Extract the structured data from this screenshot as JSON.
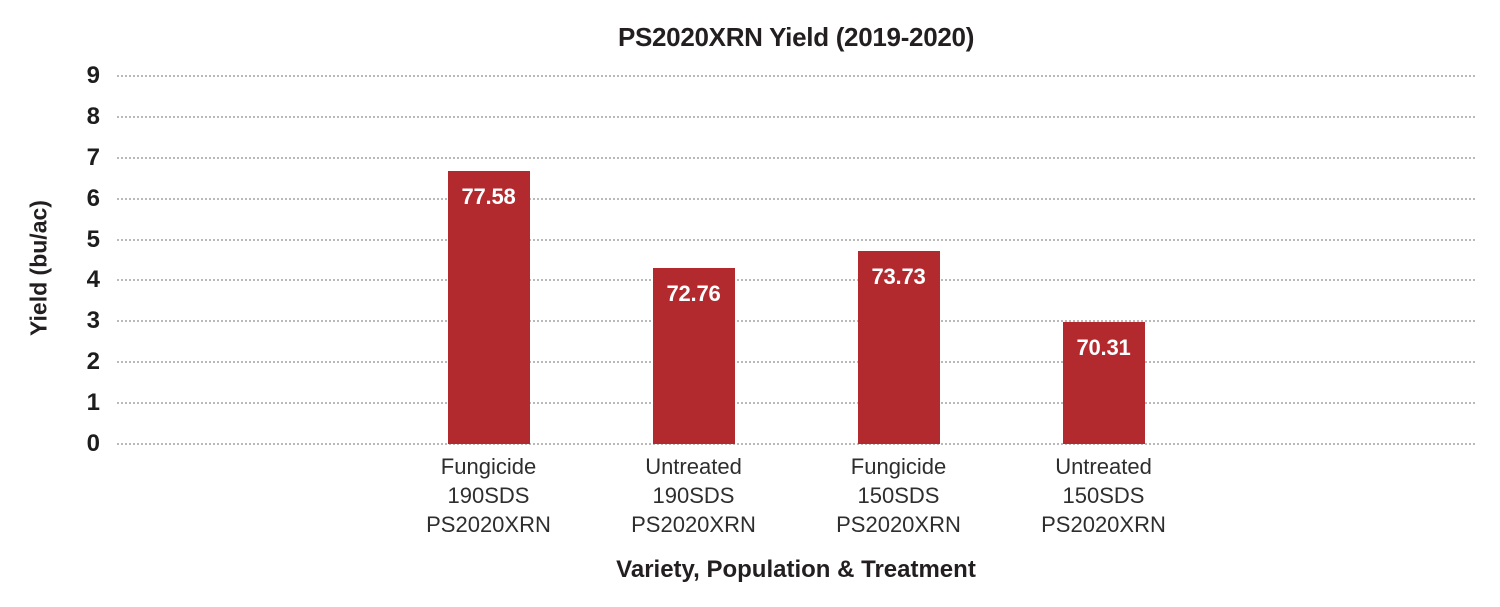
{
  "chart": {
    "title": "PS2020XRN Yield (2019-2020)",
    "y_axis_title": "Yield (bu/ac)",
    "x_axis_title": "Variety, Population & Treatment"
  },
  "colors": {
    "bar": "#b22a2e",
    "bar_value_text": "#ffffff",
    "gridline": "#b9b9b9",
    "text": "#231f20",
    "background": "#ffffff"
  },
  "chart_data": {
    "type": "bar",
    "title": "PS2020XRN Yield (2019-2020)",
    "xlabel": "Variety, Population & Treatment",
    "ylabel": "Yield (bu/ac)",
    "categories": [
      "Fungicide 190SDS PS2020XRN",
      "Untreated 190SDS PS2020XRN",
      "Fungicide 150SDS PS2020XRN",
      "Untreated 150SDS PS2020XRN"
    ],
    "category_lines": [
      [
        "Fungicide",
        "190SDS",
        "PS2020XRN"
      ],
      [
        "Untreated",
        "190SDS",
        "PS2020XRN"
      ],
      [
        "Fungicide",
        "150SDS",
        "PS2020XRN"
      ],
      [
        "Untreated",
        "150SDS",
        "PS2020XRN"
      ]
    ],
    "values": [
      77.58,
      72.76,
      73.73,
      70.31
    ],
    "value_labels": [
      "77.58",
      "72.76",
      "73.73",
      "70.31"
    ],
    "bar_heights_axis_units": [
      6.67,
      4.3,
      4.72,
      2.98
    ],
    "y_ticks": [
      "0",
      "1",
      "2",
      "3",
      "4",
      "5",
      "6",
      "7",
      "8",
      "9"
    ],
    "ylim": [
      0,
      9
    ],
    "grid": "horizontal dotted",
    "legend": "none",
    "bar_color": "#b22a2e"
  }
}
